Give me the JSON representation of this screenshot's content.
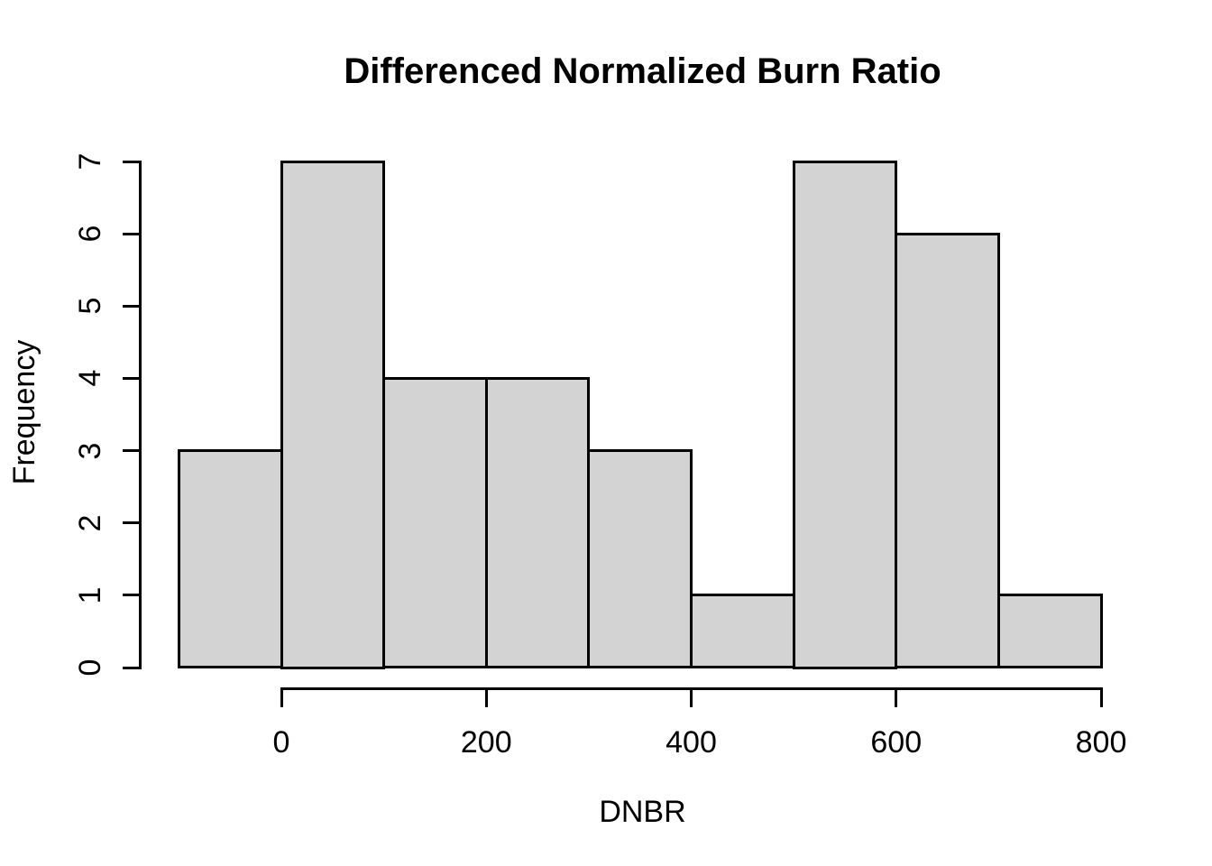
{
  "chart_data": {
    "type": "bar",
    "subtype": "histogram",
    "title": "Differenced Normalized Burn Ratio",
    "xlabel": "DNBR",
    "ylabel": "Frequency",
    "bin_edges": [
      -100,
      0,
      100,
      200,
      300,
      400,
      500,
      600,
      700,
      800
    ],
    "counts": [
      3,
      7,
      4,
      4,
      3,
      1,
      7,
      6,
      1
    ],
    "x_ticks": [
      0,
      200,
      400,
      600,
      800
    ],
    "y_ticks": [
      0,
      1,
      2,
      3,
      4,
      5,
      6,
      7
    ],
    "xlim": [
      -100,
      800
    ],
    "ylim": [
      0,
      7
    ],
    "grid": false,
    "legend": false,
    "colors": {
      "bar_fill": "#d3d3d3",
      "bar_border": "#000000",
      "axis": "#000000",
      "text": "#000000",
      "background": "#ffffff"
    }
  }
}
